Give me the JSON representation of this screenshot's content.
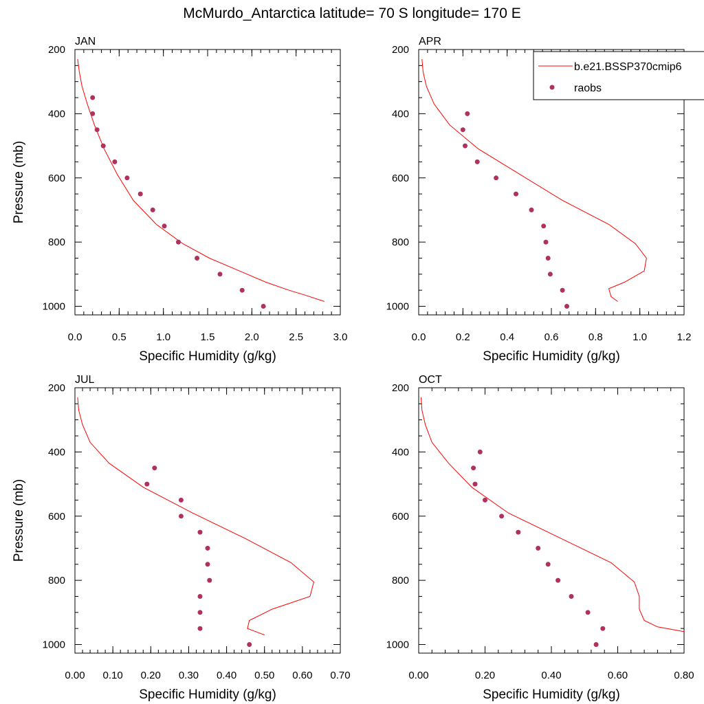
{
  "title": "McMurdo_Antarctica  latitude= 70 S longitude= 170 E",
  "colors": {
    "model": "#ff0000",
    "obs": "#b03060"
  },
  "legend": {
    "model_label": "b.e21.BSSP370cmip6",
    "obs_label": "raobs",
    "panel": "APR",
    "placement": "top-right"
  },
  "chart_data": [
    {
      "type": "line",
      "panel": "JAN",
      "xlabel": "Specific Humidity (g/kg)",
      "ylabel": "Pressure (mb)",
      "xlim": [
        0,
        3.0
      ],
      "ylim": [
        200,
        1025
      ],
      "y_reversed": true,
      "xticks": [
        "0.0",
        "0.5",
        "1.0",
        "1.5",
        "2.0",
        "2.5",
        "3.0"
      ],
      "xtick_values": [
        0,
        0.5,
        1.0,
        1.5,
        2.0,
        2.5,
        3.0
      ],
      "yticks": [
        "200",
        "400",
        "600",
        "800",
        "1000"
      ],
      "ytick_values": [
        200,
        400,
        600,
        800,
        1000
      ],
      "series": [
        {
          "name": "b.e21.BSSP370cmip6",
          "kind": "line",
          "x": [
            0.03,
            0.05,
            0.08,
            0.14,
            0.22,
            0.33,
            0.48,
            0.66,
            0.92,
            1.22,
            1.52,
            1.86,
            2.16,
            2.42,
            2.6,
            2.82
          ],
          "y": [
            230,
            270,
            315,
            370,
            435,
            510,
            590,
            670,
            745,
            805,
            850,
            890,
            925,
            950,
            965,
            985
          ]
        },
        {
          "name": "raobs",
          "kind": "scatter",
          "x": [
            0.2,
            0.2,
            0.25,
            0.32,
            0.45,
            0.59,
            0.74,
            0.88,
            1.01,
            1.17,
            1.38,
            1.64,
            1.89,
            2.13
          ],
          "y": [
            350,
            400,
            450,
            500,
            550,
            600,
            650,
            700,
            750,
            800,
            850,
            900,
            950,
            1000
          ]
        }
      ]
    },
    {
      "type": "line",
      "panel": "APR",
      "xlabel": "Specific Humidity (g/kg)",
      "ylabel": "",
      "xlim": [
        0,
        1.2
      ],
      "ylim": [
        200,
        1025
      ],
      "y_reversed": true,
      "xticks": [
        "0.0",
        "0.2",
        "0.4",
        "0.6",
        "0.8",
        "1.0",
        "1.2"
      ],
      "xtick_values": [
        0,
        0.2,
        0.4,
        0.6,
        0.8,
        1.0,
        1.2
      ],
      "yticks": [
        "200",
        "400",
        "600",
        "800",
        "1000"
      ],
      "ytick_values": [
        200,
        400,
        600,
        800,
        1000
      ],
      "series": [
        {
          "name": "b.e21.BSSP370cmip6",
          "kind": "line",
          "x": [
            0.015,
            0.02,
            0.035,
            0.07,
            0.14,
            0.27,
            0.46,
            0.65,
            0.86,
            0.98,
            1.03,
            1.02,
            0.93,
            0.86,
            0.87,
            0.9
          ],
          "y": [
            230,
            270,
            315,
            370,
            435,
            510,
            590,
            670,
            745,
            805,
            850,
            890,
            925,
            945,
            970,
            985
          ]
        },
        {
          "name": "raobs",
          "kind": "scatter",
          "x": [
            0.22,
            0.2,
            0.21,
            0.265,
            0.35,
            0.44,
            0.51,
            0.565,
            0.575,
            0.585,
            0.595,
            0.65,
            0.67
          ],
          "y": [
            400,
            450,
            500,
            550,
            600,
            650,
            700,
            750,
            800,
            850,
            900,
            950,
            1000
          ]
        }
      ]
    },
    {
      "type": "line",
      "panel": "JUL",
      "xlabel": "Specific Humidity (g/kg)",
      "ylabel": "Pressure (mb)",
      "xlim": [
        0,
        0.7
      ],
      "ylim": [
        200,
        1025
      ],
      "y_reversed": true,
      "xticks": [
        "0.00",
        "0.10",
        "0.20",
        "0.30",
        "0.40",
        "0.50",
        "0.60",
        "0.70"
      ],
      "xtick_values": [
        0,
        0.1,
        0.2,
        0.3,
        0.4,
        0.5,
        0.6,
        0.7
      ],
      "yticks": [
        "200",
        "400",
        "600",
        "800",
        "1000"
      ],
      "ytick_values": [
        200,
        400,
        600,
        800,
        1000
      ],
      "series": [
        {
          "name": "b.e21.BSSP370cmip6",
          "kind": "line",
          "x": [
            0.007,
            0.01,
            0.02,
            0.04,
            0.09,
            0.18,
            0.31,
            0.45,
            0.57,
            0.63,
            0.62,
            0.52,
            0.46,
            0.455,
            0.5
          ],
          "y": [
            230,
            270,
            315,
            370,
            435,
            510,
            590,
            670,
            745,
            805,
            850,
            890,
            925,
            950,
            970
          ]
        },
        {
          "name": "raobs",
          "kind": "scatter",
          "x": [
            0.21,
            0.19,
            0.28,
            0.28,
            0.33,
            0.35,
            0.35,
            0.355,
            0.33,
            0.33,
            0.33,
            0.46
          ],
          "y": [
            450,
            500,
            550,
            600,
            650,
            700,
            750,
            800,
            850,
            900,
            950,
            1000
          ]
        }
      ]
    },
    {
      "type": "line",
      "panel": "OCT",
      "xlabel": "Specific Humidity (g/kg)",
      "ylabel": "",
      "xlim": [
        0,
        0.8
      ],
      "ylim": [
        200,
        1025
      ],
      "y_reversed": true,
      "xticks": [
        "0.00",
        "0.20",
        "0.40",
        "0.60",
        "0.80"
      ],
      "xtick_values": [
        0,
        0.2,
        0.4,
        0.6,
        0.8
      ],
      "yticks": [
        "200",
        "400",
        "600",
        "800",
        "1000"
      ],
      "ytick_values": [
        200,
        400,
        600,
        800,
        1000
      ],
      "series": [
        {
          "name": "b.e21.BSSP370cmip6",
          "kind": "line",
          "x": [
            0.007,
            0.01,
            0.02,
            0.04,
            0.09,
            0.16,
            0.27,
            0.43,
            0.58,
            0.65,
            0.665,
            0.665,
            0.68,
            0.72,
            0.8
          ],
          "y": [
            230,
            270,
            315,
            370,
            435,
            510,
            590,
            670,
            745,
            805,
            850,
            890,
            925,
            945,
            960
          ]
        },
        {
          "name": "raobs",
          "kind": "scatter",
          "x": [
            0.185,
            0.165,
            0.17,
            0.2,
            0.25,
            0.3,
            0.36,
            0.39,
            0.42,
            0.46,
            0.51,
            0.555,
            0.535
          ],
          "y": [
            400,
            450,
            500,
            550,
            600,
            650,
            700,
            750,
            800,
            850,
            900,
            950,
            1000
          ]
        }
      ]
    }
  ]
}
